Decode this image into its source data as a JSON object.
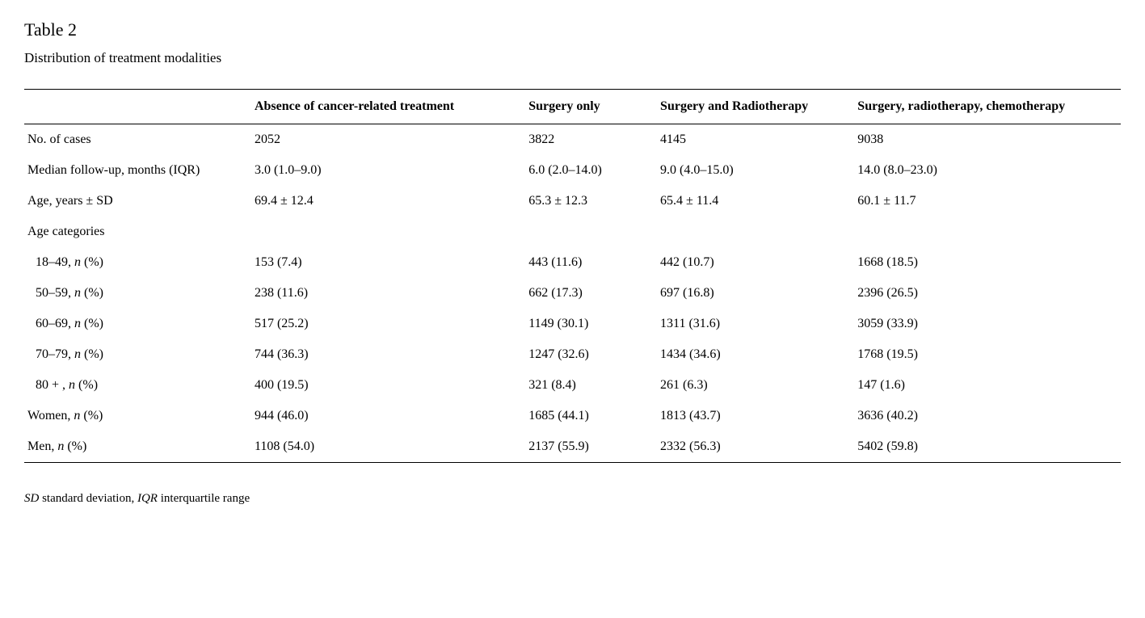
{
  "table": {
    "number": "Table 2",
    "caption": "Distribution of treatment modalities",
    "columns": [
      "",
      "Absence of cancer-related treatment",
      "Surgery only",
      "Surgery and Radiotherapy",
      "Surgery, radiotherapy, chemotherapy"
    ],
    "rows": [
      {
        "indent": false,
        "label_plain": "No. of cases",
        "values": [
          "2052",
          "3822",
          "4145",
          "9038"
        ]
      },
      {
        "indent": false,
        "label_plain": "Median follow-up, months (IQR)",
        "values": [
          "3.0 (1.0–9.0)",
          "6.0 (2.0–14.0)",
          "9.0 (4.0–15.0)",
          "14.0 (8.0–23.0)"
        ]
      },
      {
        "indent": false,
        "label_plain": "Age, years ± SD",
        "values": [
          "69.4 ± 12.4",
          "65.3 ± 12.3",
          "65.4 ± 11.4",
          "60.1 ± 11.7"
        ]
      },
      {
        "indent": false,
        "label_plain": "Age categories",
        "values": [
          "",
          "",
          "",
          ""
        ]
      },
      {
        "indent": true,
        "label_pre": "18–49, ",
        "label_ital": "n",
        "label_post": " (%)",
        "values": [
          "153 (7.4)",
          "443 (11.6)",
          "442 (10.7)",
          "1668 (18.5)"
        ]
      },
      {
        "indent": true,
        "label_pre": "50–59, ",
        "label_ital": "n",
        "label_post": " (%)",
        "values": [
          "238 (11.6)",
          "662 (17.3)",
          "697 (16.8)",
          "2396 (26.5)"
        ]
      },
      {
        "indent": true,
        "label_pre": "60–69, ",
        "label_ital": "n",
        "label_post": " (%)",
        "values": [
          "517 (25.2)",
          "1149 (30.1)",
          "1311 (31.6)",
          "3059 (33.9)"
        ]
      },
      {
        "indent": true,
        "label_pre": "70–79, ",
        "label_ital": "n",
        "label_post": " (%)",
        "values": [
          "744 (36.3)",
          "1247 (32.6)",
          "1434 (34.6)",
          "1768 (19.5)"
        ]
      },
      {
        "indent": true,
        "label_pre": "80 + , ",
        "label_ital": "n",
        "label_post": " (%)",
        "values": [
          "400 (19.5)",
          "321 (8.4)",
          "261 (6.3)",
          "147 (1.6)"
        ]
      },
      {
        "indent": false,
        "label_pre": "Women, ",
        "label_ital": "n",
        "label_post": " (%)",
        "values": [
          "944 (46.0)",
          "1685 (44.1)",
          "1813 (43.7)",
          "3636 (40.2)"
        ]
      },
      {
        "indent": false,
        "label_pre": "Men, ",
        "label_ital": "n",
        "label_post": " (%)",
        "values": [
          "1108 (54.0)",
          "2137 (55.9)",
          "2332 (56.3)",
          "5402 (59.8)"
        ]
      }
    ],
    "footnote": {
      "parts": [
        {
          "ital": "SD",
          "plain": " standard deviation, "
        },
        {
          "ital": "IQR",
          "plain": " interquartile range"
        }
      ]
    },
    "styling": {
      "text_color": "#000000",
      "background_color": "#ffffff",
      "border_color": "#000000",
      "body_fontsize": 16,
      "title_fontsize": 22,
      "caption_fontsize": 17,
      "footnote_fontsize": 15,
      "column_widths_pct": [
        21,
        25,
        12,
        18,
        24
      ]
    }
  }
}
